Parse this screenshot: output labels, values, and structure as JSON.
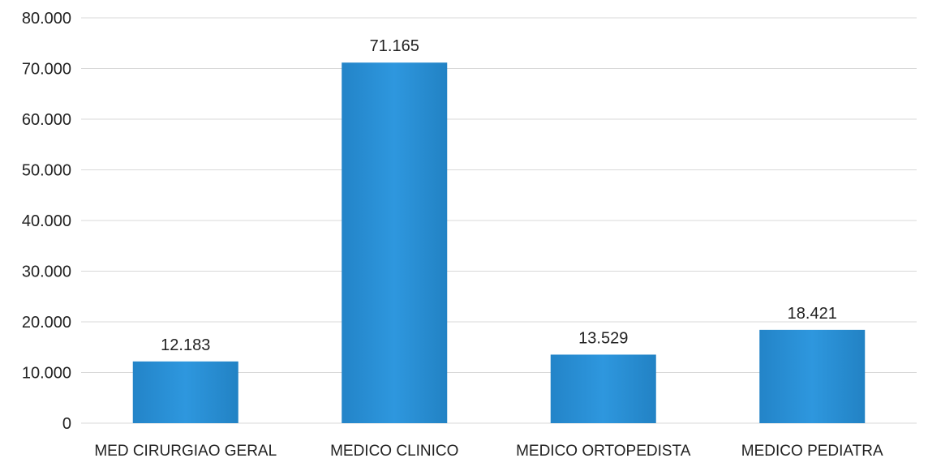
{
  "chart_data": {
    "type": "bar",
    "title": "",
    "xlabel": "",
    "ylabel": "",
    "categories": [
      "MED CIRURGIAO GERAL",
      "MEDICO CLINICO",
      "MEDICO ORTOPEDISTA",
      "MEDICO PEDIATRA"
    ],
    "values": [
      12183,
      71165,
      13529,
      18421
    ],
    "data_labels": [
      "12.183",
      "71.165",
      "13.529",
      "18.421"
    ],
    "ylim": [
      0,
      80000
    ],
    "yticks": [
      0,
      10000,
      20000,
      30000,
      40000,
      50000,
      60000,
      70000,
      80000
    ],
    "ytick_labels": [
      "0",
      "10.000",
      "20.000",
      "30.000",
      "40.000",
      "50.000",
      "60.000",
      "70.000",
      "80.000"
    ],
    "grid": true,
    "legend": "none",
    "bar_color": "#2b8fd6"
  }
}
